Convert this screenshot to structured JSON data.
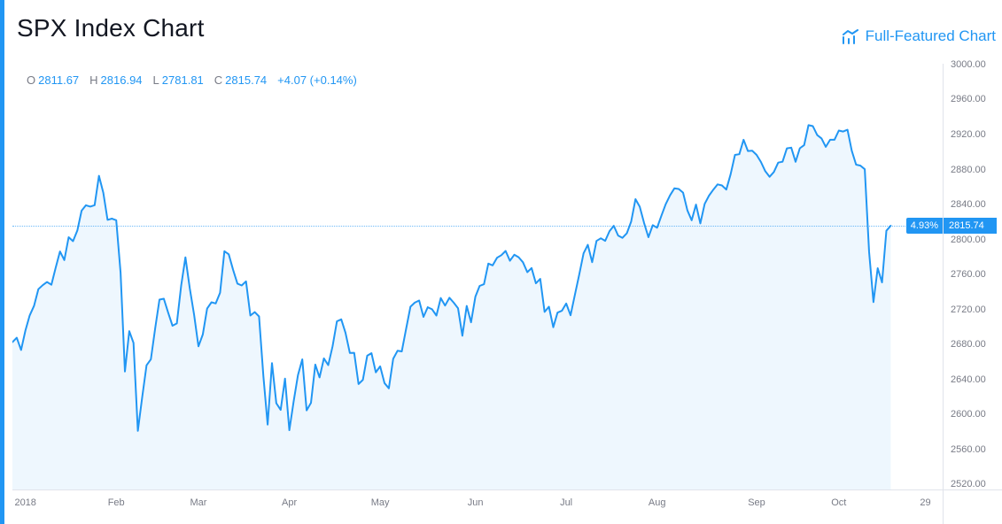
{
  "header": {
    "title": "SPX Index Chart",
    "link_label": "Full-Featured Chart"
  },
  "legend": {
    "open_label": "O",
    "open": "2811.67",
    "high_label": "H",
    "high": "2816.94",
    "low_label": "L",
    "low": "2781.81",
    "close_label": "C",
    "close": "2815.74",
    "change": "+4.07 (+0.14%)"
  },
  "colors": {
    "accent": "#2196F3",
    "accent_bar": "#2196F3",
    "area_fill": "rgba(33,150,243,0.08)",
    "axis_text": "#787b86",
    "title_text": "#131722",
    "divider": "#e0e3eb",
    "badge_bg": "#2196F3",
    "badge_text": "#ffffff"
  },
  "chart_data": {
    "type": "area",
    "title": "SPX Index Chart",
    "xlabel": "",
    "ylabel": "",
    "grid": false,
    "legend_position": "none",
    "ylim": [
      2520,
      3000
    ],
    "y_tick_step": 40,
    "y_ticks": [
      3000,
      2960,
      2920,
      2880,
      2840,
      2800,
      2760,
      2720,
      2680,
      2640,
      2600,
      2560,
      2520
    ],
    "x_labels": [
      {
        "text": "2018",
        "index": 3
      },
      {
        "text": "Feb",
        "index": 24
      },
      {
        "text": "Mar",
        "index": 43
      },
      {
        "text": "Apr",
        "index": 64
      },
      {
        "text": "May",
        "index": 85
      },
      {
        "text": "Jun",
        "index": 107
      },
      {
        "text": "Jul",
        "index": 128
      },
      {
        "text": "Aug",
        "index": 149
      },
      {
        "text": "Sep",
        "index": 172
      },
      {
        "text": "Oct",
        "index": 191
      },
      {
        "text": "29",
        "index": 211
      }
    ],
    "ohlc": {
      "open": 2811.67,
      "high": 2816.94,
      "low": 2781.81,
      "close": 2815.74,
      "change": 4.07,
      "change_pct": 0.14
    },
    "last_price": 2815.74,
    "last_price_label": "2815.74",
    "change_pct_label": "4.93%",
    "scale": {
      "y_top": 3001,
      "y_bottom": 2514,
      "x_slots": 216
    },
    "series": [
      {
        "name": "SPX",
        "points": [
          [
            "2017-12-27",
            2682.62
          ],
          [
            "2017-12-28",
            2687.54
          ],
          [
            "2017-12-29",
            2673.61
          ],
          [
            "2018-01-02",
            2695.81
          ],
          [
            "2018-01-03",
            2713.06
          ],
          [
            "2018-01-04",
            2723.99
          ],
          [
            "2018-01-05",
            2743.15
          ],
          [
            "2018-01-08",
            2747.71
          ],
          [
            "2018-01-09",
            2751.29
          ],
          [
            "2018-01-10",
            2748.23
          ],
          [
            "2018-01-11",
            2767.56
          ],
          [
            "2018-01-12",
            2786.24
          ],
          [
            "2018-01-16",
            2776.42
          ],
          [
            "2018-01-17",
            2802.56
          ],
          [
            "2018-01-18",
            2798.03
          ],
          [
            "2018-01-19",
            2810.3
          ],
          [
            "2018-01-22",
            2832.97
          ],
          [
            "2018-01-23",
            2839.13
          ],
          [
            "2018-01-24",
            2837.54
          ],
          [
            "2018-01-25",
            2839.25
          ],
          [
            "2018-01-26",
            2872.87
          ],
          [
            "2018-01-29",
            2853.53
          ],
          [
            "2018-01-30",
            2822.43
          ],
          [
            "2018-01-31",
            2823.81
          ],
          [
            "2018-02-01",
            2821.98
          ],
          [
            "2018-02-02",
            2762.13
          ],
          [
            "2018-02-05",
            2648.94
          ],
          [
            "2018-02-06",
            2695.14
          ],
          [
            "2018-02-07",
            2681.66
          ],
          [
            "2018-02-08",
            2581.0
          ],
          [
            "2018-02-09",
            2619.55
          ],
          [
            "2018-02-12",
            2656.0
          ],
          [
            "2018-02-13",
            2662.94
          ],
          [
            "2018-02-14",
            2698.63
          ],
          [
            "2018-02-15",
            2731.2
          ],
          [
            "2018-02-16",
            2732.22
          ],
          [
            "2018-02-20",
            2716.26
          ],
          [
            "2018-02-21",
            2701.33
          ],
          [
            "2018-02-22",
            2703.96
          ],
          [
            "2018-02-23",
            2747.3
          ],
          [
            "2018-02-26",
            2779.6
          ],
          [
            "2018-02-27",
            2744.28
          ],
          [
            "2018-02-28",
            2713.83
          ],
          [
            "2018-03-01",
            2677.67
          ],
          [
            "2018-03-02",
            2691.25
          ],
          [
            "2018-03-05",
            2720.94
          ],
          [
            "2018-03-06",
            2728.12
          ],
          [
            "2018-03-07",
            2726.8
          ],
          [
            "2018-03-08",
            2738.97
          ],
          [
            "2018-03-09",
            2786.57
          ],
          [
            "2018-03-12",
            2783.02
          ],
          [
            "2018-03-13",
            2765.31
          ],
          [
            "2018-03-14",
            2749.48
          ],
          [
            "2018-03-15",
            2747.33
          ],
          [
            "2018-03-16",
            2752.01
          ],
          [
            "2018-03-19",
            2712.92
          ],
          [
            "2018-03-20",
            2716.94
          ],
          [
            "2018-03-21",
            2711.93
          ],
          [
            "2018-03-22",
            2643.69
          ],
          [
            "2018-03-23",
            2588.26
          ],
          [
            "2018-03-26",
            2658.55
          ],
          [
            "2018-03-27",
            2612.62
          ],
          [
            "2018-03-28",
            2605.0
          ],
          [
            "2018-03-29",
            2640.87
          ],
          [
            "2018-04-02",
            2581.88
          ],
          [
            "2018-04-03",
            2614.45
          ],
          [
            "2018-04-04",
            2644.69
          ],
          [
            "2018-04-05",
            2662.84
          ],
          [
            "2018-04-06",
            2604.47
          ],
          [
            "2018-04-09",
            2613.16
          ],
          [
            "2018-04-10",
            2656.87
          ],
          [
            "2018-04-11",
            2642.19
          ],
          [
            "2018-04-12",
            2663.99
          ],
          [
            "2018-04-13",
            2656.3
          ],
          [
            "2018-04-16",
            2677.84
          ],
          [
            "2018-04-17",
            2706.39
          ],
          [
            "2018-04-18",
            2708.64
          ],
          [
            "2018-04-19",
            2693.13
          ],
          [
            "2018-04-20",
            2670.14
          ],
          [
            "2018-04-23",
            2670.29
          ],
          [
            "2018-04-24",
            2634.56
          ],
          [
            "2018-04-25",
            2639.4
          ],
          [
            "2018-04-26",
            2666.94
          ],
          [
            "2018-04-27",
            2669.91
          ],
          [
            "2018-04-30",
            2648.05
          ],
          [
            "2018-05-01",
            2654.8
          ],
          [
            "2018-05-02",
            2635.67
          ],
          [
            "2018-05-03",
            2629.73
          ],
          [
            "2018-05-04",
            2663.42
          ],
          [
            "2018-05-07",
            2672.63
          ],
          [
            "2018-05-08",
            2671.92
          ],
          [
            "2018-05-09",
            2697.79
          ],
          [
            "2018-05-10",
            2723.07
          ],
          [
            "2018-05-11",
            2727.72
          ],
          [
            "2018-05-14",
            2730.13
          ],
          [
            "2018-05-15",
            2711.45
          ],
          [
            "2018-05-16",
            2722.46
          ],
          [
            "2018-05-17",
            2720.13
          ],
          [
            "2018-05-18",
            2712.97
          ],
          [
            "2018-05-21",
            2733.01
          ],
          [
            "2018-05-22",
            2724.44
          ],
          [
            "2018-05-23",
            2733.29
          ],
          [
            "2018-05-24",
            2727.76
          ],
          [
            "2018-05-25",
            2721.33
          ],
          [
            "2018-05-29",
            2689.86
          ],
          [
            "2018-05-30",
            2724.01
          ],
          [
            "2018-05-31",
            2705.27
          ],
          [
            "2018-06-01",
            2734.62
          ],
          [
            "2018-06-04",
            2746.87
          ],
          [
            "2018-06-05",
            2748.8
          ],
          [
            "2018-06-06",
            2772.35
          ],
          [
            "2018-06-07",
            2770.37
          ],
          [
            "2018-06-08",
            2779.03
          ],
          [
            "2018-06-11",
            2782.0
          ],
          [
            "2018-06-12",
            2786.85
          ],
          [
            "2018-06-13",
            2775.63
          ],
          [
            "2018-06-14",
            2782.49
          ],
          [
            "2018-06-15",
            2779.66
          ],
          [
            "2018-06-18",
            2773.87
          ],
          [
            "2018-06-19",
            2762.57
          ],
          [
            "2018-06-20",
            2767.32
          ],
          [
            "2018-06-21",
            2749.76
          ],
          [
            "2018-06-22",
            2754.88
          ],
          [
            "2018-06-25",
            2717.07
          ],
          [
            "2018-06-26",
            2723.06
          ],
          [
            "2018-06-27",
            2699.63
          ],
          [
            "2018-06-28",
            2716.31
          ],
          [
            "2018-06-29",
            2718.37
          ],
          [
            "2018-07-02",
            2726.71
          ],
          [
            "2018-07-03",
            2713.22
          ],
          [
            "2018-07-05",
            2736.61
          ],
          [
            "2018-07-06",
            2759.82
          ],
          [
            "2018-07-09",
            2784.17
          ],
          [
            "2018-07-10",
            2793.84
          ],
          [
            "2018-07-11",
            2774.02
          ],
          [
            "2018-07-12",
            2798.29
          ],
          [
            "2018-07-13",
            2801.31
          ],
          [
            "2018-07-16",
            2798.43
          ],
          [
            "2018-07-17",
            2809.55
          ],
          [
            "2018-07-18",
            2815.62
          ],
          [
            "2018-07-19",
            2804.49
          ],
          [
            "2018-07-20",
            2801.83
          ],
          [
            "2018-07-23",
            2806.98
          ],
          [
            "2018-07-24",
            2820.4
          ],
          [
            "2018-07-25",
            2846.07
          ],
          [
            "2018-07-26",
            2837.44
          ],
          [
            "2018-07-27",
            2818.82
          ],
          [
            "2018-07-30",
            2802.6
          ],
          [
            "2018-07-31",
            2816.29
          ],
          [
            "2018-08-01",
            2813.36
          ],
          [
            "2018-08-02",
            2827.22
          ],
          [
            "2018-08-03",
            2840.35
          ],
          [
            "2018-08-06",
            2850.4
          ],
          [
            "2018-08-07",
            2858.45
          ],
          [
            "2018-08-08",
            2857.7
          ],
          [
            "2018-08-09",
            2853.58
          ],
          [
            "2018-08-10",
            2833.28
          ],
          [
            "2018-08-13",
            2821.93
          ],
          [
            "2018-08-14",
            2839.96
          ],
          [
            "2018-08-15",
            2818.37
          ],
          [
            "2018-08-16",
            2840.69
          ],
          [
            "2018-08-17",
            2850.13
          ],
          [
            "2018-08-20",
            2857.05
          ],
          [
            "2018-08-21",
            2862.96
          ],
          [
            "2018-08-22",
            2861.82
          ],
          [
            "2018-08-23",
            2856.98
          ],
          [
            "2018-08-24",
            2874.69
          ],
          [
            "2018-08-27",
            2896.74
          ],
          [
            "2018-08-28",
            2897.52
          ],
          [
            "2018-08-29",
            2914.04
          ],
          [
            "2018-08-30",
            2901.13
          ],
          [
            "2018-08-31",
            2901.52
          ],
          [
            "2018-09-04",
            2896.72
          ],
          [
            "2018-09-05",
            2888.6
          ],
          [
            "2018-09-06",
            2878.05
          ],
          [
            "2018-09-07",
            2871.68
          ],
          [
            "2018-09-10",
            2877.13
          ],
          [
            "2018-09-11",
            2887.89
          ],
          [
            "2018-09-12",
            2888.92
          ],
          [
            "2018-09-13",
            2904.18
          ],
          [
            "2018-09-14",
            2904.98
          ],
          [
            "2018-09-17",
            2888.8
          ],
          [
            "2018-09-18",
            2904.31
          ],
          [
            "2018-09-19",
            2907.95
          ],
          [
            "2018-09-20",
            2930.75
          ],
          [
            "2018-09-21",
            2929.67
          ],
          [
            "2018-09-24",
            2919.37
          ],
          [
            "2018-09-25",
            2915.56
          ],
          [
            "2018-09-26",
            2905.97
          ],
          [
            "2018-09-27",
            2914.0
          ],
          [
            "2018-09-28",
            2913.98
          ],
          [
            "2018-10-01",
            2924.59
          ],
          [
            "2018-10-02",
            2923.43
          ],
          [
            "2018-10-03",
            2925.51
          ],
          [
            "2018-10-04",
            2901.61
          ],
          [
            "2018-10-05",
            2885.57
          ],
          [
            "2018-10-08",
            2884.43
          ],
          [
            "2018-10-09",
            2880.34
          ],
          [
            "2018-10-10",
            2785.68
          ],
          [
            "2018-10-11",
            2728.37
          ],
          [
            "2018-10-12",
            2767.13
          ],
          [
            "2018-10-15",
            2750.79
          ],
          [
            "2018-10-16",
            2809.92
          ],
          [
            "2018-10-17",
            2815.74
          ]
        ]
      }
    ]
  }
}
